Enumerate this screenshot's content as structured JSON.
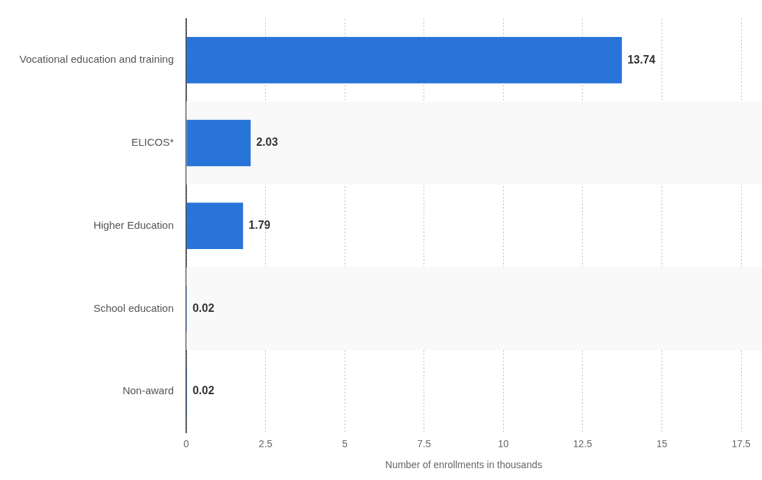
{
  "chart_data": {
    "type": "bar",
    "orientation": "horizontal",
    "categories": [
      "Vocational education and training",
      "ELICOS*",
      "Higher Education",
      "School education",
      "Non-award"
    ],
    "values": [
      13.74,
      2.03,
      1.79,
      0.02,
      0.02
    ],
    "color": "#2874d9",
    "x_label": "Number of enrollments in thousands",
    "xlim": [
      0,
      17.5
    ],
    "xticks": [
      0,
      2.5,
      5,
      7.5,
      10,
      12.5,
      15,
      17.5
    ],
    "grid": true,
    "data_labels": true
  }
}
